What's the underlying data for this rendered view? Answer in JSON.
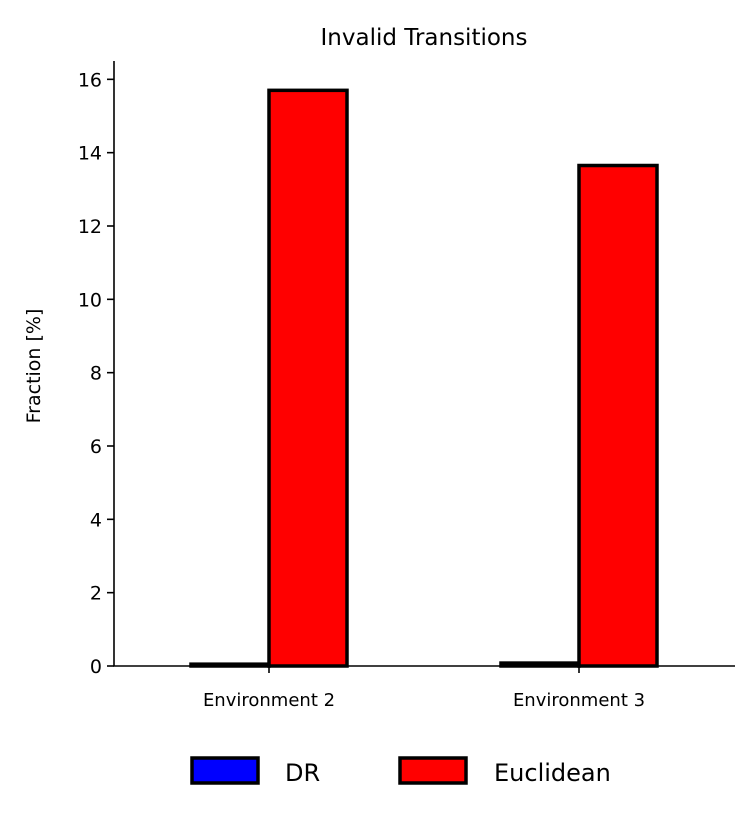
{
  "chart_data": {
    "type": "bar",
    "title": "Invalid Transitions",
    "xlabel": "",
    "ylabel": "Fraction [%]",
    "categories": [
      "Environment 2",
      "Environment 3"
    ],
    "series": [
      {
        "name": "DR",
        "color": "#0000ff",
        "values": [
          0.05,
          0.08
        ]
      },
      {
        "name": "Euclidean",
        "color": "#ff0000",
        "values": [
          15.7,
          13.65
        ]
      }
    ],
    "ylim": [
      0,
      16.5
    ],
    "yticks": [
      0,
      2,
      4,
      6,
      8,
      10,
      12,
      14,
      16
    ],
    "grid": false,
    "legend_position": "bottom-center",
    "bar_edge_color": "#000000"
  }
}
